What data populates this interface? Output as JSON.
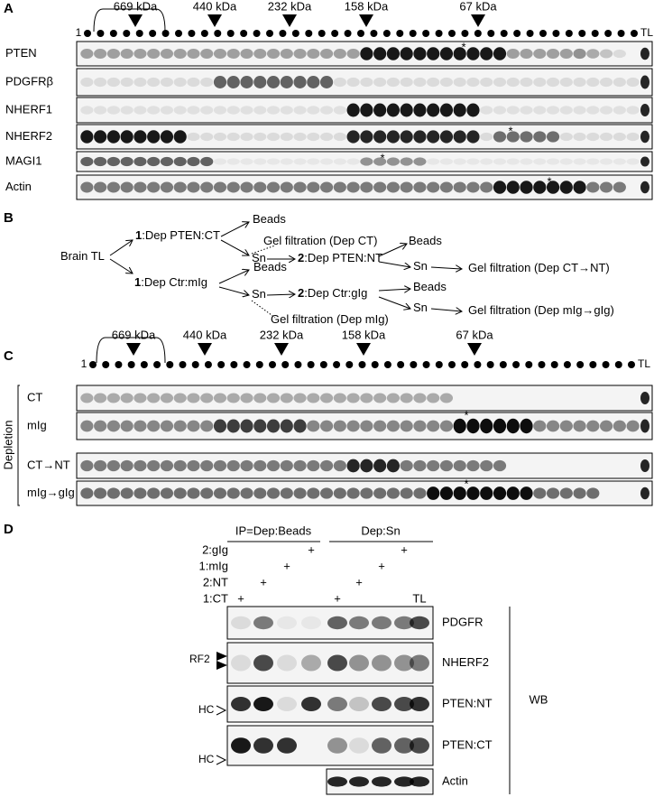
{
  "panel_a": {
    "label": "A",
    "first_lane": "1",
    "last_lane": "TL",
    "markers": [
      "669 kDa",
      "440 kDa",
      "232 kDa",
      "158 kDa",
      "67 kDa"
    ],
    "rows": [
      "PTEN",
      "PDGFRβ",
      "NHERF1",
      "NHERF2",
      "MAGI1",
      "Actin"
    ],
    "asterisk": "*"
  },
  "panel_b": {
    "label": "B",
    "nodes": [
      {
        "text": "Brain TL"
      },
      {
        "num": "1",
        "text": ":Dep PTEN:CT"
      },
      {
        "text": "Beads"
      },
      {
        "text": "Gel filtration (Dep CT)"
      },
      {
        "text": "Sn"
      },
      {
        "num": "2",
        "text": ":Dep PTEN:NT"
      },
      {
        "text": "Beads"
      },
      {
        "text": "Sn"
      },
      {
        "text": "Gel filtration (Dep CT→NT)"
      },
      {
        "num": "1",
        "text": ":Dep Ctr:mIg"
      },
      {
        "text": "Beads"
      },
      {
        "text": "Sn"
      },
      {
        "num": "2",
        "text": ":Dep Ctr:gIg"
      },
      {
        "text": "Beads"
      },
      {
        "text": "Sn"
      },
      {
        "text": "Gel filtration (Dep mIg→gIg)"
      },
      {
        "text": "Gel filtration (Dep mIg)"
      }
    ]
  },
  "panel_c": {
    "label": "C",
    "first_lane": "1",
    "last_lane": "TL",
    "markers": [
      "669 kDa",
      "440 kDa",
      "232 kDa",
      "158 kDa",
      "67 kDa"
    ],
    "group_label": "Depletion",
    "rows": [
      "CT",
      "mIg",
      "CT→NT",
      "mIg→gIg"
    ],
    "asterisk": "*"
  },
  "panel_d": {
    "label": "D",
    "groups": [
      "IP=Dep:Beads",
      "Dep:Sn"
    ],
    "conditions": [
      "2:gIg",
      "1:mIg",
      "2:NT",
      "1:CT"
    ],
    "plus": "+",
    "lane_label": "TL",
    "blots": [
      "PDGFR",
      "NHERF2",
      "PTEN:NT",
      "PTEN:CT",
      "Actin"
    ],
    "method": "WB",
    "band_labels": [
      "RF2",
      "HC",
      "HC"
    ]
  }
}
